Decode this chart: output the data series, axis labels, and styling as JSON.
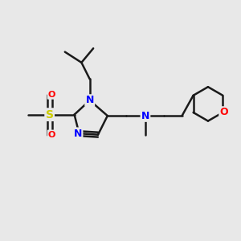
{
  "bg_color": "#e8e8e8",
  "bond_color": "#1a1a1a",
  "bond_width": 1.8,
  "atom_colors": {
    "N": "#0000ff",
    "O": "#ff0000",
    "S": "#cccc00",
    "C": "#1a1a1a"
  },
  "font_size_atom": 9
}
